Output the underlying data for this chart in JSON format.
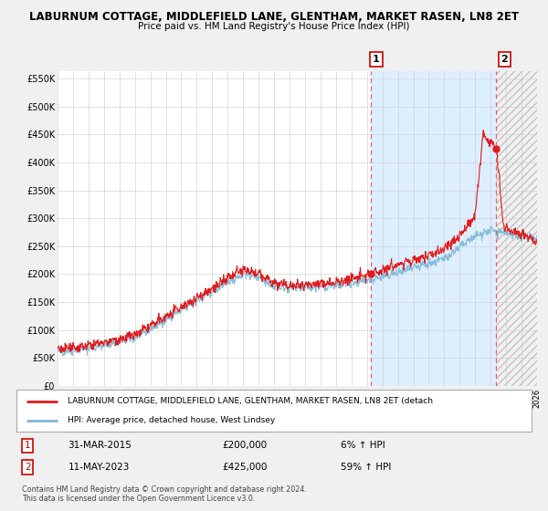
{
  "title": "LABURNUM COTTAGE, MIDDLEFIELD LANE, GLENTHAM, MARKET RASEN, LN8 2ET",
  "subtitle": "Price paid vs. HM Land Registry's House Price Index (HPI)",
  "ylim": [
    0,
    562500
  ],
  "yticks": [
    0,
    50000,
    100000,
    150000,
    200000,
    250000,
    300000,
    350000,
    400000,
    450000,
    500000,
    550000
  ],
  "ytick_labels": [
    "£0",
    "£50K",
    "£100K",
    "£150K",
    "£200K",
    "£250K",
    "£300K",
    "£350K",
    "£400K",
    "£450K",
    "£500K",
    "£550K"
  ],
  "sale1_date": 2015.25,
  "sale1_price": 200000,
  "sale1_label": "1",
  "sale2_date": 2023.37,
  "sale2_price": 425000,
  "sale2_label": "2",
  "hpi_color": "#7db8d8",
  "price_color": "#e31a1c",
  "vline_color": "#e05050",
  "bg_color": "#f0f0f0",
  "plot_bg_color": "#ffffff",
  "shade_color": "#ddeeff",
  "legend_line1": "LABURNUM COTTAGE, MIDDLEFIELD LANE, GLENTHAM, MARKET RASEN, LN8 2ET (detach",
  "legend_line2": "HPI: Average price, detached house, West Lindsey",
  "table_row1_num": "1",
  "table_row1_date": "31-MAR-2015",
  "table_row1_price": "£200,000",
  "table_row1_hpi": "6% ↑ HPI",
  "table_row2_num": "2",
  "table_row2_date": "11-MAY-2023",
  "table_row2_price": "£425,000",
  "table_row2_hpi": "59% ↑ HPI",
  "footer": "Contains HM Land Registry data © Crown copyright and database right 2024.\nThis data is licensed under the Open Government Licence v3.0.",
  "xmin": 1995,
  "xmax": 2026
}
